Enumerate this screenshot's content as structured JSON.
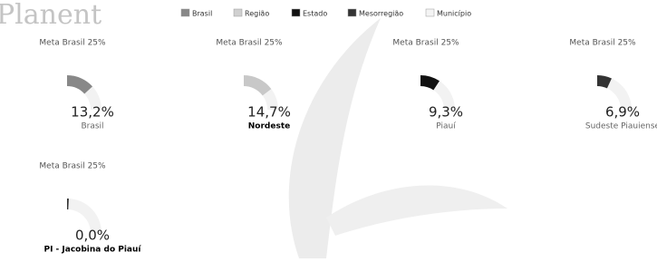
{
  "header": {
    "logo": "Planent"
  },
  "legend": [
    {
      "label": "Brasil",
      "color": "#888888"
    },
    {
      "label": "Região",
      "color": "#d0d0d0"
    },
    {
      "label": "Estado",
      "color": "#111111"
    },
    {
      "label": "Mesorregião",
      "color": "#333333"
    },
    {
      "label": "Município",
      "color": "#f4f4f4"
    }
  ],
  "gauges": [
    {
      "target": {
        "value": 25,
        "label": "Meta Brasil 25%"
      },
      "value": {
        "value": 13.2,
        "label": "13,2%"
      },
      "name": "Brasil",
      "color": "#888888"
    },
    {
      "target": {
        "value": 25,
        "label": "Meta Brasil 25%"
      },
      "value": {
        "value": 14.7,
        "label": "14,7%"
      },
      "name": "Nordeste",
      "color": "#c8c8c8"
    },
    {
      "target": {
        "value": 25,
        "label": "Meta Brasil 25%"
      },
      "value": {
        "value": 9.3,
        "label": "9,3%"
      },
      "name": "Piauí",
      "color": "#111111"
    },
    {
      "target": {
        "value": 25,
        "label": "Meta Brasil 25%"
      },
      "value": {
        "value": 6.9,
        "label": "6,9%"
      },
      "name": "Sudeste Piauiense",
      "color": "#333333"
    },
    {
      "target": {
        "value": 25,
        "label": "Meta Brasil 25%"
      },
      "value": {
        "value": 0,
        "label": "0,0%"
      },
      "name": "PI - Jacobina do Piauí",
      "color": "#333333"
    }
  ]
}
